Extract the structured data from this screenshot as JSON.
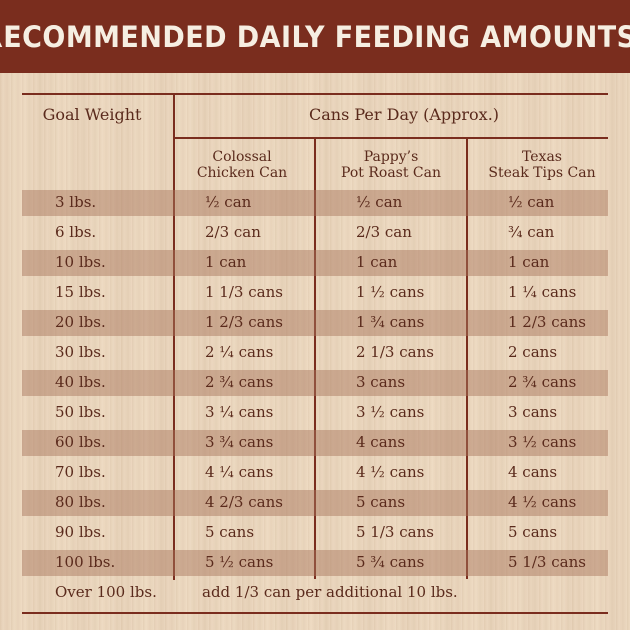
{
  "title": "RECOMMENDED DAILY FEEDING AMOUNTS:",
  "headers": {
    "goal_weight": "Goal Weight",
    "cans_per_day": "Cans Per Day (Approx.)"
  },
  "columns": [
    {
      "line1": "Colossal",
      "line2": "Chicken Can"
    },
    {
      "line1": "Pappy’s",
      "line2": "Pot Roast Can"
    },
    {
      "line1": "Texas",
      "line2": "Steak Tips Can"
    }
  ],
  "rows": [
    {
      "weight": "3 lbs.",
      "chicken": "½ can",
      "pot_roast": "½ can",
      "steak_tips": "½ can"
    },
    {
      "weight": "6 lbs.",
      "chicken": "2/3 can",
      "pot_roast": "2/3 can",
      "steak_tips": "¾ can"
    },
    {
      "weight": "10 lbs.",
      "chicken": "1 can",
      "pot_roast": "1 can",
      "steak_tips": "1 can"
    },
    {
      "weight": "15 lbs.",
      "chicken": "1 1/3 cans",
      "pot_roast": "1 ½ cans",
      "steak_tips": "1 ¼ cans"
    },
    {
      "weight": "20 lbs.",
      "chicken": "1 2/3 cans",
      "pot_roast": "1 ¾ cans",
      "steak_tips": "1 2/3 cans"
    },
    {
      "weight": "30 lbs.",
      "chicken": "2 ¼ cans",
      "pot_roast": "2 1/3 cans",
      "steak_tips": "2 cans"
    },
    {
      "weight": "40 lbs.",
      "chicken": "2 ¾ cans",
      "pot_roast": "3 cans",
      "steak_tips": "2 ¾ cans"
    },
    {
      "weight": "50 lbs.",
      "chicken": "3 ¼ cans",
      "pot_roast": "3 ½ cans",
      "steak_tips": "3 cans"
    },
    {
      "weight": "60 lbs.",
      "chicken": "3 ¾ cans",
      "pot_roast": "4 cans",
      "steak_tips": "3 ½ cans"
    },
    {
      "weight": "70 lbs.",
      "chicken": "4 ¼ cans",
      "pot_roast": "4 ½ cans",
      "steak_tips": "4 cans"
    },
    {
      "weight": "80 lbs.",
      "chicken": "4 2/3 cans",
      "pot_roast": "5 cans",
      "steak_tips": "4 ½ cans"
    },
    {
      "weight": "90 lbs.",
      "chicken": "5 cans",
      "pot_roast": "5 1/3 cans",
      "steak_tips": "5 cans"
    },
    {
      "weight": "100 lbs.",
      "chicken": "5 ½ cans",
      "pot_roast": "5 ¾ cans",
      "steak_tips": "5 1/3 cans"
    }
  ],
  "footer_row": {
    "weight": "Over 100 lbs.",
    "note": "add 1/3 can per additional 10 lbs."
  },
  "colors": {
    "accent": "#7a2d1e",
    "background": "#efdcc4",
    "row_shade": "#c49a85"
  }
}
